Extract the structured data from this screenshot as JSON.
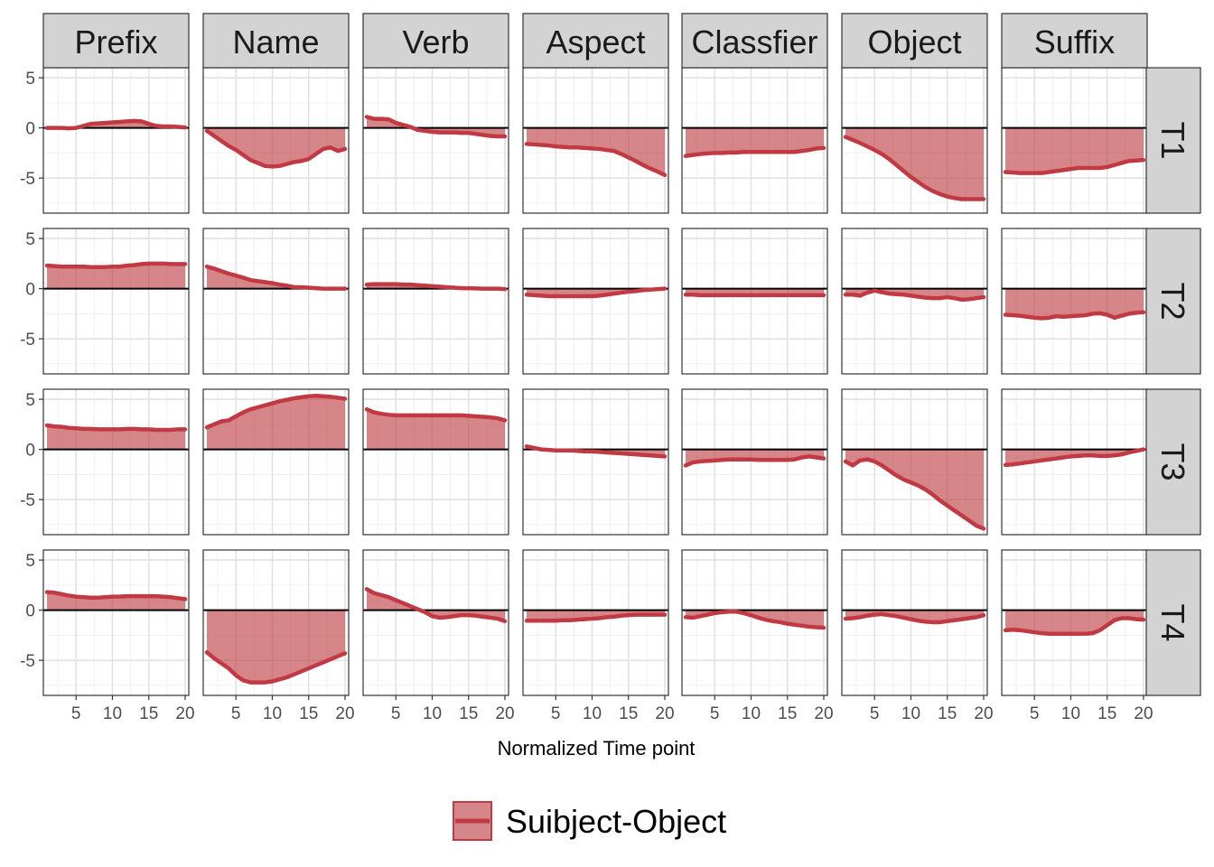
{
  "chart_data": {
    "type": "area",
    "xlabel": "Normalized Time point",
    "ylabel": "",
    "xlim": [
      0.5,
      20.5
    ],
    "ylim": [
      -8.5,
      6
    ],
    "x_ticks": [
      5,
      10,
      15,
      20
    ],
    "y_ticks": [
      5,
      0,
      -5
    ],
    "y_tick_labels": [
      "5",
      "0",
      "-5"
    ],
    "grid": true,
    "legend": {
      "position": "bottom",
      "entries": [
        "Suibject-Object"
      ]
    },
    "colors": {
      "fill": "#c0444a",
      "line": "#c13a43",
      "strip_bg": "#d3d3d3"
    },
    "columns": [
      "Prefix",
      "Name",
      "Verb",
      "Aspect",
      "Classfier",
      "Object",
      "Suffix"
    ],
    "rows": [
      "T1",
      "T2",
      "T3",
      "T4"
    ],
    "x": [
      1,
      2,
      3,
      4,
      5,
      6,
      7,
      8,
      9,
      10,
      11,
      12,
      13,
      14,
      15,
      16,
      17,
      18,
      19,
      20
    ],
    "series": {
      "T1": {
        "Prefix": [
          0,
          0,
          0,
          -0.05,
          0,
          0.2,
          0.4,
          0.45,
          0.5,
          0.55,
          0.6,
          0.65,
          0.7,
          0.65,
          0.4,
          0.2,
          0.15,
          0.15,
          0.1,
          0.05
        ],
        "Name": [
          -0.3,
          -0.8,
          -1.3,
          -1.8,
          -2.2,
          -2.7,
          -3.2,
          -3.5,
          -3.8,
          -3.85,
          -3.8,
          -3.6,
          -3.4,
          -3.3,
          -3.1,
          -2.6,
          -2.1,
          -1.95,
          -2.3,
          -2.1
        ],
        "Verb": [
          1.1,
          0.9,
          0.9,
          0.85,
          0.5,
          0.3,
          0.1,
          -0.2,
          -0.3,
          -0.4,
          -0.45,
          -0.45,
          -0.45,
          -0.5,
          -0.5,
          -0.6,
          -0.7,
          -0.8,
          -0.85,
          -0.85
        ],
        "Aspect": [
          -1.6,
          -1.65,
          -1.7,
          -1.75,
          -1.85,
          -1.9,
          -1.95,
          -1.95,
          -2,
          -2.05,
          -2.1,
          -2.2,
          -2.3,
          -2.6,
          -2.95,
          -3.3,
          -3.7,
          -4.05,
          -4.35,
          -4.7
        ],
        "Classfier": [
          -2.8,
          -2.7,
          -2.6,
          -2.55,
          -2.5,
          -2.5,
          -2.45,
          -2.45,
          -2.4,
          -2.4,
          -2.4,
          -2.4,
          -2.4,
          -2.4,
          -2.4,
          -2.4,
          -2.3,
          -2.2,
          -2.05,
          -2
        ],
        "Object": [
          -0.9,
          -1.2,
          -1.5,
          -1.85,
          -2.2,
          -2.6,
          -3.1,
          -3.7,
          -4.3,
          -4.9,
          -5.4,
          -5.9,
          -6.3,
          -6.6,
          -6.85,
          -7,
          -7.1,
          -7.1,
          -7.1,
          -7.1
        ],
        "Suffix": [
          -4.4,
          -4.45,
          -4.5,
          -4.5,
          -4.5,
          -4.5,
          -4.4,
          -4.3,
          -4.2,
          -4.1,
          -4,
          -4,
          -4,
          -4,
          -3.9,
          -3.7,
          -3.5,
          -3.3,
          -3.25,
          -3.2
        ]
      },
      "T2": {
        "Prefix": [
          2.3,
          2.25,
          2.2,
          2.2,
          2.2,
          2.2,
          2.15,
          2.15,
          2.15,
          2.2,
          2.2,
          2.3,
          2.35,
          2.45,
          2.5,
          2.5,
          2.5,
          2.45,
          2.45,
          2.45
        ],
        "Name": [
          2.2,
          2,
          1.75,
          1.5,
          1.3,
          1.1,
          0.85,
          0.75,
          0.65,
          0.55,
          0.4,
          0.3,
          0.15,
          0.15,
          0.1,
          0.05,
          0,
          0,
          0,
          0
        ],
        "Verb": [
          0.4,
          0.45,
          0.45,
          0.45,
          0.45,
          0.4,
          0.4,
          0.35,
          0.3,
          0.25,
          0.2,
          0.15,
          0.1,
          0.05,
          0.05,
          0.02,
          0,
          0,
          0,
          -0.05
        ],
        "Aspect": [
          -0.6,
          -0.65,
          -0.7,
          -0.75,
          -0.75,
          -0.75,
          -0.75,
          -0.75,
          -0.75,
          -0.75,
          -0.7,
          -0.6,
          -0.5,
          -0.4,
          -0.3,
          -0.25,
          -0.15,
          -0.1,
          -0.05,
          0
        ],
        "Classfier": [
          -0.6,
          -0.6,
          -0.65,
          -0.65,
          -0.65,
          -0.65,
          -0.65,
          -0.65,
          -0.65,
          -0.65,
          -0.65,
          -0.65,
          -0.65,
          -0.65,
          -0.65,
          -0.65,
          -0.65,
          -0.65,
          -0.65,
          -0.65
        ],
        "Object": [
          -0.6,
          -0.6,
          -0.7,
          -0.4,
          -0.2,
          -0.35,
          -0.5,
          -0.55,
          -0.6,
          -0.7,
          -0.8,
          -0.9,
          -0.95,
          -0.95,
          -0.85,
          -0.95,
          -1.1,
          -1.05,
          -0.95,
          -0.85
        ],
        "Suffix": [
          -2.6,
          -2.65,
          -2.7,
          -2.8,
          -2.9,
          -2.95,
          -2.9,
          -2.75,
          -2.8,
          -2.75,
          -2.7,
          -2.65,
          -2.5,
          -2.45,
          -2.6,
          -2.9,
          -2.7,
          -2.5,
          -2.4,
          -2.35
        ]
      },
      "T3": {
        "Prefix": [
          2.4,
          2.3,
          2.25,
          2.15,
          2.1,
          2.05,
          2.05,
          2,
          2,
          2,
          2,
          2.05,
          2.05,
          2,
          2,
          1.95,
          1.95,
          1.95,
          2,
          2
        ],
        "Name": [
          2.2,
          2.5,
          2.8,
          2.9,
          3.3,
          3.7,
          4,
          4.2,
          4.4,
          4.6,
          4.8,
          4.95,
          5.1,
          5.2,
          5.3,
          5.35,
          5.3,
          5.25,
          5.15,
          5.05
        ],
        "Verb": [
          4,
          3.7,
          3.55,
          3.45,
          3.4,
          3.4,
          3.4,
          3.4,
          3.4,
          3.4,
          3.4,
          3.4,
          3.4,
          3.4,
          3.35,
          3.3,
          3.25,
          3.2,
          3.1,
          2.9
        ],
        "Aspect": [
          0.3,
          0.15,
          0,
          -0.05,
          -0.1,
          -0.1,
          -0.1,
          -0.15,
          -0.2,
          -0.2,
          -0.25,
          -0.3,
          -0.35,
          -0.4,
          -0.45,
          -0.5,
          -0.55,
          -0.6,
          -0.65,
          -0.7
        ],
        "Classfier": [
          -1.6,
          -1.3,
          -1.2,
          -1.15,
          -1.1,
          -1.05,
          -1,
          -1,
          -1,
          -1,
          -1.05,
          -1.05,
          -1.05,
          -1.05,
          -1.05,
          -1,
          -0.8,
          -0.7,
          -0.8,
          -0.9
        ],
        "Object": [
          -1.2,
          -1.6,
          -1.1,
          -1,
          -1.2,
          -1.6,
          -2.1,
          -2.6,
          -3,
          -3.3,
          -3.6,
          -4,
          -4.5,
          -5.1,
          -5.6,
          -6.1,
          -6.6,
          -7.1,
          -7.6,
          -7.9
        ],
        "Suffix": [
          -1.55,
          -1.5,
          -1.4,
          -1.3,
          -1.2,
          -1.1,
          -1,
          -0.9,
          -0.8,
          -0.7,
          -0.65,
          -0.6,
          -0.6,
          -0.65,
          -0.65,
          -0.6,
          -0.5,
          -0.3,
          -0.15,
          0
        ]
      },
      "T4": {
        "Prefix": [
          1.8,
          1.75,
          1.6,
          1.45,
          1.35,
          1.3,
          1.25,
          1.25,
          1.3,
          1.35,
          1.35,
          1.4,
          1.4,
          1.4,
          1.4,
          1.4,
          1.35,
          1.3,
          1.2,
          1.1
        ],
        "Name": [
          -4.2,
          -4.8,
          -5.3,
          -5.8,
          -6.5,
          -7,
          -7.2,
          -7.2,
          -7.2,
          -7.1,
          -6.9,
          -6.7,
          -6.4,
          -6.1,
          -5.8,
          -5.5,
          -5.2,
          -4.9,
          -4.6,
          -4.3
        ],
        "Verb": [
          2.1,
          1.7,
          1.5,
          1.3,
          1,
          0.7,
          0.4,
          0.1,
          -0.2,
          -0.6,
          -0.75,
          -0.7,
          -0.6,
          -0.5,
          -0.5,
          -0.55,
          -0.65,
          -0.75,
          -0.85,
          -1.1
        ],
        "Aspect": [
          -1.05,
          -1.05,
          -1.05,
          -1.05,
          -1.05,
          -1,
          -1,
          -0.95,
          -0.9,
          -0.85,
          -0.8,
          -0.7,
          -0.65,
          -0.55,
          -0.5,
          -0.45,
          -0.45,
          -0.45,
          -0.45,
          -0.45
        ],
        "Classfier": [
          -0.7,
          -0.75,
          -0.6,
          -0.45,
          -0.3,
          -0.2,
          -0.15,
          -0.15,
          -0.3,
          -0.5,
          -0.75,
          -0.95,
          -1.1,
          -1.2,
          -1.35,
          -1.45,
          -1.55,
          -1.65,
          -1.7,
          -1.75
        ],
        "Object": [
          -0.85,
          -0.8,
          -0.7,
          -0.55,
          -0.45,
          -0.4,
          -0.5,
          -0.6,
          -0.75,
          -0.9,
          -1.05,
          -1.15,
          -1.2,
          -1.2,
          -1.1,
          -1,
          -0.9,
          -0.8,
          -0.7,
          -0.5
        ],
        "Suffix": [
          -2,
          -1.95,
          -2,
          -2.1,
          -2.2,
          -2.3,
          -2.35,
          -2.35,
          -2.35,
          -2.35,
          -2.35,
          -2.35,
          -2.3,
          -2,
          -1.5,
          -1,
          -0.8,
          -0.8,
          -0.9,
          -0.95
        ]
      }
    }
  }
}
